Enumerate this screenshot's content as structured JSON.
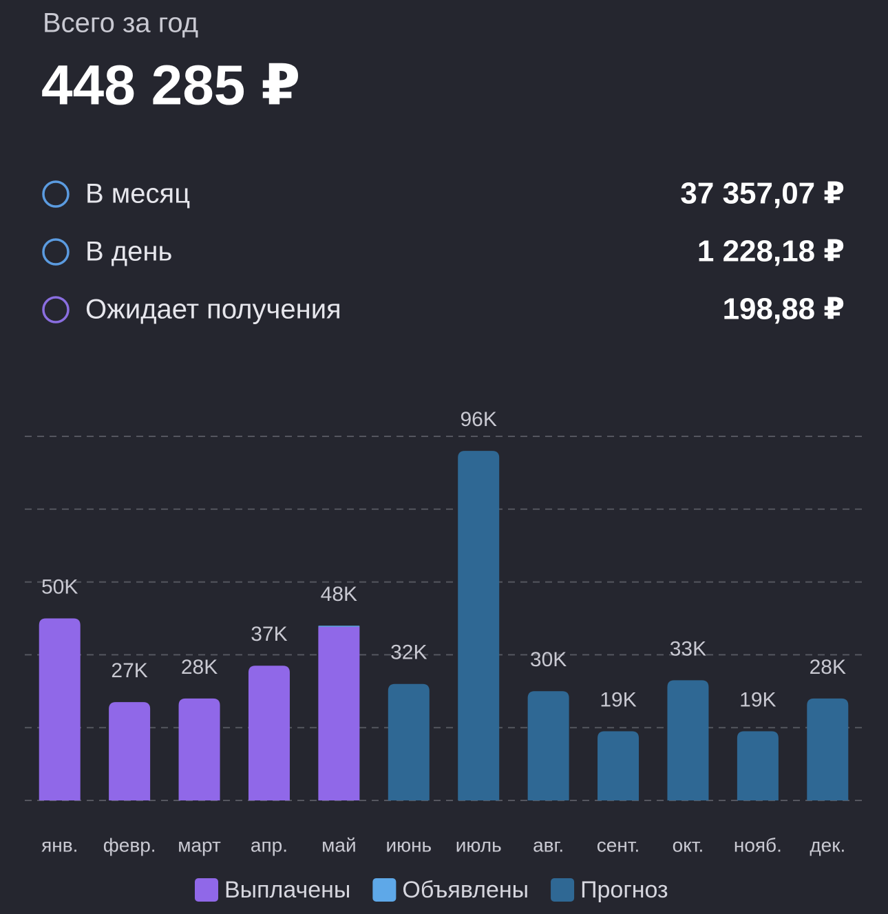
{
  "header": {
    "title": "Всего за год",
    "total": "448 285 ₽"
  },
  "stats": [
    {
      "label": "В месяц",
      "value": "37 357,07 ₽"
    },
    {
      "label": "В день",
      "value": "1 228,18 ₽"
    },
    {
      "label": "Ожидает получения",
      "value": "198,88 ₽"
    }
  ],
  "chart_data": {
    "type": "stacked-bar",
    "categories": [
      "янв.",
      "февр.",
      "март",
      "апр.",
      "май",
      "июнь",
      "июль",
      "авг.",
      "сент.",
      "окт.",
      "нояб.",
      "дек."
    ],
    "series": [
      {
        "name": "Выплачены",
        "color": "#9068e8",
        "values": [
          50000,
          27000,
          28000,
          37000,
          47700,
          null,
          null,
          null,
          null,
          null,
          null,
          null
        ],
        "value_labels": [
          "50K",
          "27K",
          "28K",
          "37K",
          "48K",
          null,
          null,
          null,
          null,
          null,
          null,
          null
        ]
      },
      {
        "name": "Объявлены",
        "color": "#5ea8e8",
        "values": [
          null,
          null,
          null,
          null,
          300,
          null,
          null,
          null,
          null,
          null,
          null,
          null
        ]
      },
      {
        "name": "Прогноз",
        "color": "#2f6894",
        "values": [
          null,
          null,
          null,
          null,
          null,
          32000,
          96000,
          30000,
          19000,
          33000,
          19000,
          28000
        ],
        "value_labels": [
          null,
          null,
          null,
          null,
          null,
          "32K",
          "96K",
          "30K",
          "19K",
          "33K",
          "19K",
          "28K"
        ]
      }
    ],
    "ylim": [
      0,
      100000
    ],
    "yticks": [
      0,
      20000,
      40000,
      60000,
      80000,
      100000
    ],
    "grid": true
  }
}
